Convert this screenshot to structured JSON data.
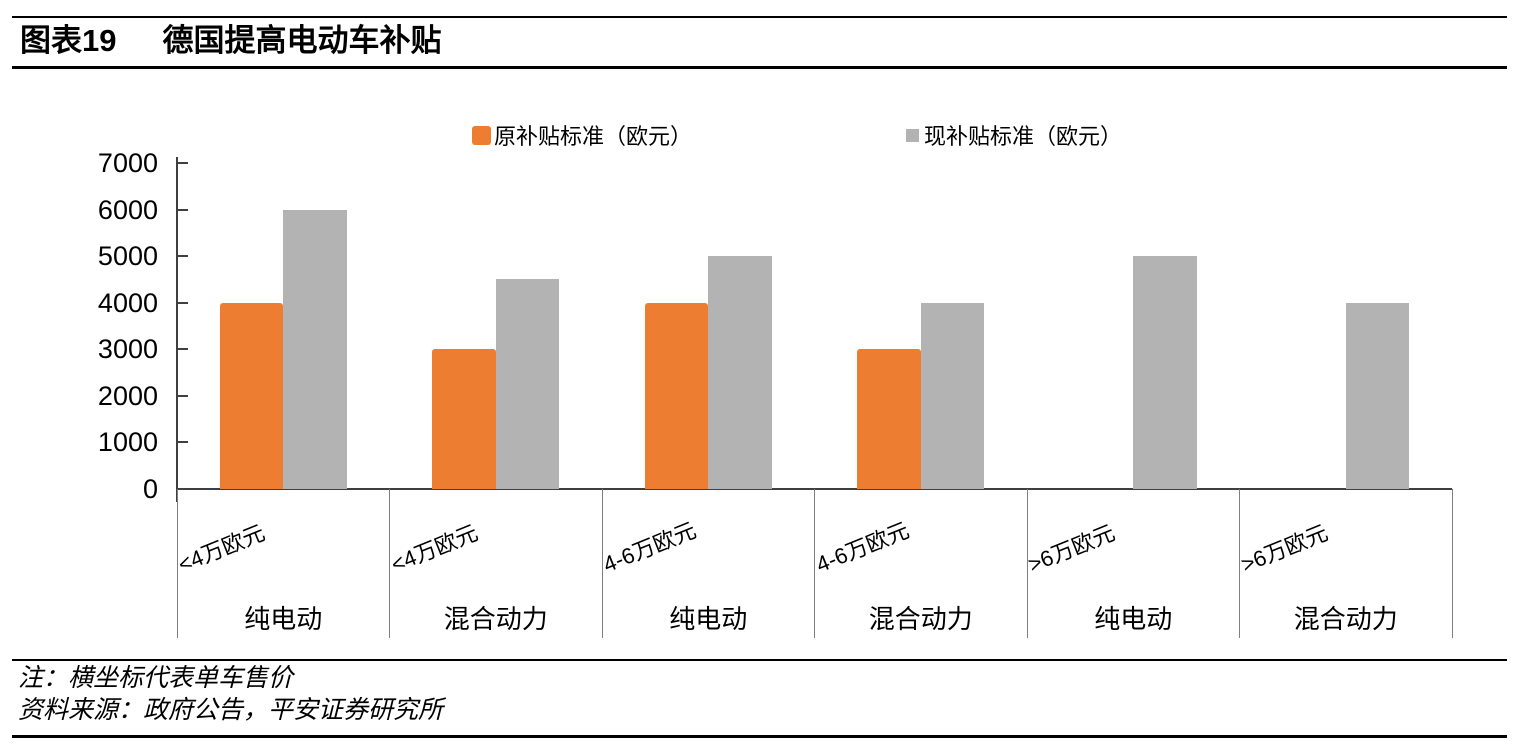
{
  "header": {
    "figure_label": "图表19",
    "title": "德国提高电动车补贴"
  },
  "chart_data": {
    "type": "bar",
    "title": "德国提高电动车补贴",
    "xlabel": "",
    "ylabel": "",
    "ylim": [
      0,
      7000
    ],
    "y_ticks": [
      0,
      1000,
      2000,
      3000,
      4000,
      5000,
      6000,
      7000
    ],
    "grid": false,
    "legend_position": "top",
    "categories": [
      {
        "price": "<4万欧元",
        "vehicle": "纯电动"
      },
      {
        "price": "<4万欧元",
        "vehicle": "混合动力"
      },
      {
        "price": "4-6万欧元",
        "vehicle": "纯电动"
      },
      {
        "price": "4-6万欧元",
        "vehicle": "混合动力"
      },
      {
        "price": ">6万欧元",
        "vehicle": "纯电动"
      },
      {
        "price": ">6万欧元",
        "vehicle": "混合动力"
      }
    ],
    "series": [
      {
        "name": "原补贴标准（欧元）",
        "color": "#ED7D31",
        "values": [
          4000,
          3000,
          4000,
          3000,
          null,
          null
        ]
      },
      {
        "name": "现补贴标准（欧元）",
        "color": "#B3B3B3",
        "values": [
          6000,
          4500,
          5000,
          4000,
          5000,
          4000
        ]
      }
    ]
  },
  "footer": {
    "note": "注：横坐标代表单车售价",
    "source": "资料来源：政府公告，平安证券研究所"
  }
}
